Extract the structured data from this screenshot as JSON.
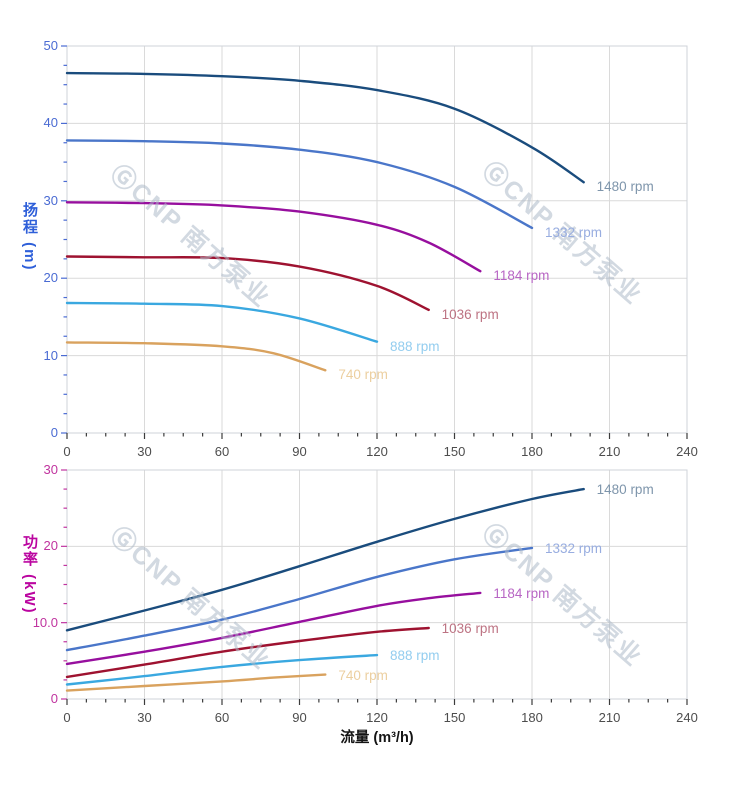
{
  "page": {
    "background": "#ffffff"
  },
  "watermark": {
    "text": "ⒼCNP 南方泵业",
    "color": "#adbac8"
  },
  "x_axis_title": "流量 (m³/h)",
  "chart_data": [
    {
      "type": "line",
      "id": "head",
      "ylabel": "扬程 (m)",
      "xlabel": "",
      "x_range": [
        0,
        240
      ],
      "y_range": [
        0,
        50
      ],
      "x_tick_values": [
        0,
        30,
        60,
        90,
        120,
        150,
        180,
        210,
        240
      ],
      "x_tick_labels": [
        "0",
        "30",
        "60",
        "90",
        "120",
        "150",
        "180",
        "210",
        "240"
      ],
      "y_tick_values": [
        0,
        10,
        20,
        30,
        40,
        50
      ],
      "y_tick_labels": [
        "0",
        "10",
        "20",
        "30",
        "40",
        "50"
      ],
      "x_minor_step": 7.5,
      "y_minor_step": 2.5,
      "grid": true,
      "legend_position": "curve-end",
      "axis_color": "#4a6bd3",
      "title_color": "#2e5fd9",
      "series": [
        {
          "name": "1480 rpm",
          "rpm": 1480,
          "color": "#1a4c7d",
          "label_color": "#7e95ab",
          "points": [
            [
              0,
              46.5
            ],
            [
              30,
              46.4
            ],
            [
              60,
              46.1
            ],
            [
              90,
              45.5
            ],
            [
              120,
              44.3
            ],
            [
              150,
              41.9
            ],
            [
              180,
              36.9
            ],
            [
              200,
              32.4
            ]
          ]
        },
        {
          "name": "1332 rpm",
          "rpm": 1332,
          "color": "#4a76c9",
          "label_color": "#98ade0",
          "points": [
            [
              0,
              37.8
            ],
            [
              30,
              37.7
            ],
            [
              60,
              37.4
            ],
            [
              90,
              36.6
            ],
            [
              120,
              35.0
            ],
            [
              150,
              31.8
            ],
            [
              180,
              26.5
            ]
          ]
        },
        {
          "name": "1184 rpm",
          "rpm": 1184,
          "color": "#970f9e",
          "label_color": "#b866c4",
          "points": [
            [
              0,
              29.8
            ],
            [
              30,
              29.7
            ],
            [
              60,
              29.4
            ],
            [
              90,
              28.6
            ],
            [
              120,
              26.9
            ],
            [
              140,
              24.6
            ],
            [
              160,
              20.9
            ]
          ]
        },
        {
          "name": "1036 rpm",
          "rpm": 1036,
          "color": "#9e1230",
          "label_color": "#bd7383",
          "points": [
            [
              0,
              22.8
            ],
            [
              30,
              22.7
            ],
            [
              60,
              22.6
            ],
            [
              90,
              21.5
            ],
            [
              120,
              19.0
            ],
            [
              140,
              15.9
            ]
          ]
        },
        {
          "name": "888 rpm",
          "rpm": 888,
          "color": "#3aa8e0",
          "label_color": "#93cdef",
          "points": [
            [
              0,
              16.8
            ],
            [
              30,
              16.7
            ],
            [
              60,
              16.4
            ],
            [
              90,
              14.8
            ],
            [
              120,
              11.8
            ]
          ]
        },
        {
          "name": "740 rpm",
          "rpm": 740,
          "color": "#d9a25e",
          "label_color": "#eccfa0",
          "points": [
            [
              0,
              11.7
            ],
            [
              30,
              11.6
            ],
            [
              60,
              11.2
            ],
            [
              80,
              10.3
            ],
            [
              100,
              8.1
            ]
          ]
        }
      ]
    },
    {
      "type": "line",
      "id": "power",
      "ylabel": "功率 (kW)",
      "xlabel": "流量 (m³/h)",
      "x_range": [
        0,
        240
      ],
      "y_range": [
        0,
        30
      ],
      "x_tick_values": [
        0,
        30,
        60,
        90,
        120,
        150,
        180,
        210,
        240
      ],
      "x_tick_labels": [
        "0",
        "30",
        "60",
        "90",
        "120",
        "150",
        "180",
        "210",
        "240"
      ],
      "y_tick_values": [
        0,
        10,
        20,
        30
      ],
      "y_tick_labels": [
        "0",
        "10.0",
        "20",
        "30"
      ],
      "x_minor_step": 7.5,
      "y_minor_step": 2.5,
      "grid": true,
      "legend_position": "curve-end",
      "axis_color": "#c0349f",
      "title_color": "#bb06a0",
      "series": [
        {
          "name": "1480 rpm",
          "rpm": 1480,
          "color": "#1a4c7d",
          "label_color": "#7e95ab",
          "points": [
            [
              0,
              9.0
            ],
            [
              30,
              11.6
            ],
            [
              60,
              14.3
            ],
            [
              90,
              17.4
            ],
            [
              120,
              20.6
            ],
            [
              150,
              23.6
            ],
            [
              180,
              26.2
            ],
            [
              200,
              27.5
            ]
          ]
        },
        {
          "name": "1332 rpm",
          "rpm": 1332,
          "color": "#4a76c9",
          "label_color": "#98ade0",
          "points": [
            [
              0,
              6.4
            ],
            [
              30,
              8.3
            ],
            [
              60,
              10.4
            ],
            [
              90,
              13.1
            ],
            [
              120,
              16.0
            ],
            [
              150,
              18.3
            ],
            [
              180,
              19.8
            ]
          ]
        },
        {
          "name": "1184 rpm",
          "rpm": 1184,
          "color": "#970f9e",
          "label_color": "#b866c4",
          "points": [
            [
              0,
              4.6
            ],
            [
              30,
              6.2
            ],
            [
              60,
              8.0
            ],
            [
              90,
              10.1
            ],
            [
              120,
              12.2
            ],
            [
              140,
              13.2
            ],
            [
              160,
              13.9
            ]
          ]
        },
        {
          "name": "1036 rpm",
          "rpm": 1036,
          "color": "#9e1230",
          "label_color": "#bd7383",
          "points": [
            [
              0,
              2.9
            ],
            [
              30,
              4.5
            ],
            [
              60,
              6.2
            ],
            [
              90,
              7.6
            ],
            [
              120,
              8.8
            ],
            [
              140,
              9.3
            ]
          ]
        },
        {
          "name": "888 rpm",
          "rpm": 888,
          "color": "#3aa8e0",
          "label_color": "#93cdef",
          "points": [
            [
              0,
              1.9
            ],
            [
              30,
              3.0
            ],
            [
              60,
              4.2
            ],
            [
              90,
              5.1
            ],
            [
              120,
              5.75
            ]
          ]
        },
        {
          "name": "740 rpm",
          "rpm": 740,
          "color": "#d9a25e",
          "label_color": "#eccfa0",
          "points": [
            [
              0,
              1.1
            ],
            [
              30,
              1.7
            ],
            [
              60,
              2.3
            ],
            [
              80,
              2.8
            ],
            [
              100,
              3.2
            ]
          ]
        }
      ]
    }
  ]
}
